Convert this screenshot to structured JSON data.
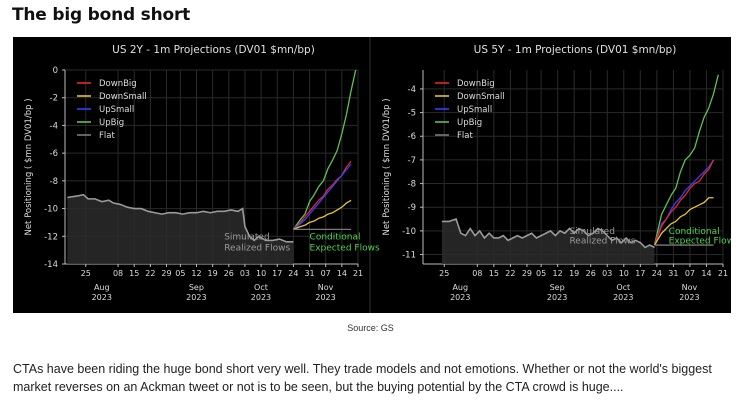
{
  "headline": "The big bond short",
  "source": "Source: GS",
  "caption": "CTAs have been riding the huge bond short very well. They trade models and not emotions. Whether or not the world's biggest market reverses on an Ackman tweet or not is to be seen, but the buying potential by the CTA crowd is huge....",
  "colors": {
    "figure_bg": "#000000",
    "DownBig": "#e8262a",
    "DownSmall": "#e6c42e",
    "UpSmall": "#3040ff",
    "UpBig": "#5ec24e",
    "Flat": "#7a7a7a",
    "realized": "#9a9a9a",
    "conditional_label": "#4fd04f"
  },
  "chart_data": [
    {
      "type": "line",
      "title": "US 2Y - 1m Projections (DV01 $mn/bp)",
      "ylabel": "Net Positioning ( $mn DV01/bp )",
      "xlabel": "",
      "ylim": [
        -14,
        0
      ],
      "yticks": [
        0,
        -2,
        -4,
        -6,
        -8,
        -10,
        -12,
        -14
      ],
      "xlim": [
        -9,
        118
      ],
      "xticks": [
        {
          "x": 0,
          "label": "25",
          "month": "Aug",
          "year": "2023"
        },
        {
          "x": 14,
          "label": "08"
        },
        {
          "x": 21,
          "label": "15"
        },
        {
          "x": 28,
          "label": "22"
        },
        {
          "x": 35,
          "label": "29"
        },
        {
          "x": 41,
          "label": "05",
          "month": "Sep",
          "year": "2023"
        },
        {
          "x": 48,
          "label": "12"
        },
        {
          "x": 55,
          "label": "19"
        },
        {
          "x": 62,
          "label": "26"
        },
        {
          "x": 69,
          "label": "03",
          "month": "Oct",
          "year": "2023"
        },
        {
          "x": 76,
          "label": "10"
        },
        {
          "x": 83,
          "label": "17"
        },
        {
          "x": 90,
          "label": "24"
        },
        {
          "x": 97,
          "label": "31",
          "month": "Nov",
          "year": "2023"
        },
        {
          "x": 104,
          "label": "07"
        },
        {
          "x": 111,
          "label": "14"
        },
        {
          "x": 118,
          "label": "21"
        }
      ],
      "legend": [
        "DownBig",
        "DownSmall",
        "UpSmall",
        "UpBig",
        "Flat"
      ],
      "legend_position": "top-left",
      "annotations": [
        {
          "text": "Simulated",
          "x": 60,
          "y": -12.0,
          "color_key": "realized"
        },
        {
          "text": "Realized Flows",
          "x": 60,
          "y": -12.8,
          "color_key": "realized"
        },
        {
          "text": "Conditional",
          "x": 97,
          "y": -12.0,
          "color_key": "conditional_label"
        },
        {
          "text": "Expected Flows",
          "x": 97,
          "y": -12.8,
          "color_key": "conditional_label"
        }
      ],
      "realized": {
        "name": "Simulated Realized Flows",
        "x": [
          -8,
          -4,
          -1,
          1,
          4,
          7,
          10,
          12,
          15,
          18,
          21,
          24,
          27,
          30,
          33,
          36,
          39,
          42,
          45,
          48,
          51,
          54,
          57,
          60,
          63,
          66,
          68,
          69,
          71,
          73,
          75,
          78,
          81,
          84,
          87,
          90
        ],
        "y": [
          -9.2,
          -9.1,
          -9.0,
          -9.3,
          -9.3,
          -9.5,
          -9.4,
          -9.6,
          -9.7,
          -9.9,
          -10.0,
          -10.0,
          -10.2,
          -10.3,
          -10.4,
          -10.3,
          -10.3,
          -10.4,
          -10.3,
          -10.3,
          -10.2,
          -10.3,
          -10.2,
          -10.2,
          -10.1,
          -10.2,
          -10.0,
          -11.3,
          -12.0,
          -12.3,
          -12.0,
          -12.3,
          -12.3,
          -12.2,
          -12.4,
          -12.4
        ]
      },
      "series": [
        {
          "name": "UpBig",
          "color_key": "UpBig",
          "x": [
            90,
            93,
            95,
            97,
            99,
            101,
            103,
            105,
            107,
            109,
            111,
            113,
            115,
            117
          ],
          "y": [
            -11.5,
            -10.8,
            -10.4,
            -9.5,
            -9.0,
            -8.4,
            -8.0,
            -7.1,
            -6.5,
            -5.8,
            -4.6,
            -3.2,
            -1.5,
            0.0
          ]
        },
        {
          "name": "DownBig",
          "color_key": "DownBig",
          "x": [
            90,
            93,
            95,
            97,
            99,
            101,
            103,
            105,
            107,
            109,
            111,
            113,
            115
          ],
          "y": [
            -11.5,
            -11.0,
            -10.6,
            -10.2,
            -9.8,
            -9.4,
            -9.1,
            -8.6,
            -8.3,
            -7.9,
            -7.6,
            -7.0,
            -6.6
          ]
        },
        {
          "name": "UpSmall",
          "color_key": "UpSmall",
          "x": [
            90,
            93,
            95,
            97,
            99,
            101,
            103,
            105,
            107,
            109,
            111,
            113,
            115
          ],
          "y": [
            -11.5,
            -11.1,
            -10.8,
            -10.4,
            -10.0,
            -9.6,
            -9.2,
            -8.8,
            -8.4,
            -8.0,
            -7.6,
            -7.2,
            -6.8
          ]
        },
        {
          "name": "DownSmall",
          "color_key": "DownSmall",
          "x": [
            90,
            93,
            95,
            97,
            99,
            101,
            103,
            105,
            107,
            109,
            111,
            113,
            115
          ],
          "y": [
            -11.5,
            -11.3,
            -11.2,
            -11.0,
            -10.9,
            -10.7,
            -10.6,
            -10.4,
            -10.3,
            -10.1,
            -9.9,
            -9.6,
            -9.4
          ]
        },
        {
          "name": "Flat",
          "color_key": "Flat",
          "x": [
            90,
            95,
            100,
            105,
            110,
            115
          ],
          "y": [
            -11.5,
            -11.5,
            -11.5,
            -11.5,
            -11.5,
            -11.5
          ]
        }
      ]
    },
    {
      "type": "line",
      "title": "US 5Y - 1m Projections (DV01 $mn/bp)",
      "ylabel": "Net Positioning ( $mn DV01/bp )",
      "xlabel": "",
      "ylim": [
        -11.4,
        -3.2
      ],
      "yticks": [
        -4,
        -5,
        -6,
        -7,
        -8,
        -9,
        -10,
        -11
      ],
      "xlim": [
        -9,
        118
      ],
      "xticks": [
        {
          "x": 0,
          "label": "25",
          "month": "Aug",
          "year": "2023"
        },
        {
          "x": 14,
          "label": "08"
        },
        {
          "x": 21,
          "label": "15"
        },
        {
          "x": 28,
          "label": "22"
        },
        {
          "x": 35,
          "label": "29"
        },
        {
          "x": 41,
          "label": "05",
          "month": "Sep",
          "year": "2023"
        },
        {
          "x": 48,
          "label": "12"
        },
        {
          "x": 55,
          "label": "19"
        },
        {
          "x": 62,
          "label": "26"
        },
        {
          "x": 69,
          "label": "03",
          "month": "Oct",
          "year": "2023"
        },
        {
          "x": 76,
          "label": "10"
        },
        {
          "x": 83,
          "label": "17"
        },
        {
          "x": 90,
          "label": "24"
        },
        {
          "x": 97,
          "label": "31",
          "month": "Nov",
          "year": "2023"
        },
        {
          "x": 104,
          "label": "07"
        },
        {
          "x": 111,
          "label": "14"
        },
        {
          "x": 118,
          "label": "21"
        }
      ],
      "legend": [
        "DownBig",
        "DownSmall",
        "UpSmall",
        "UpBig",
        "Flat"
      ],
      "legend_position": "top-left",
      "annotations": [
        {
          "text": "Simulated",
          "x": 53,
          "y": -10.0,
          "color_key": "realized"
        },
        {
          "text": "Realized Flows",
          "x": 53,
          "y": -10.4,
          "color_key": "realized"
        },
        {
          "text": "Conditional",
          "x": 95,
          "y": -10.0,
          "color_key": "conditional_label"
        },
        {
          "text": "Expected Flows",
          "x": 95,
          "y": -10.4,
          "color_key": "conditional_label"
        }
      ],
      "realized": {
        "name": "Simulated Realized Flows",
        "x": [
          -1,
          2,
          5,
          7,
          9,
          11,
          13,
          15,
          17,
          19,
          21,
          23,
          25,
          27,
          29,
          31,
          33,
          35,
          37,
          39,
          41,
          43,
          45,
          47,
          49,
          51,
          53,
          55,
          57,
          59,
          61,
          63,
          65,
          67,
          69,
          71,
          73,
          75,
          77,
          79,
          81,
          83,
          85,
          87,
          89
        ],
        "y": [
          -9.6,
          -9.6,
          -9.5,
          -10.1,
          -10.2,
          -9.9,
          -10.2,
          -10.0,
          -10.3,
          -10.1,
          -10.3,
          -10.3,
          -10.2,
          -10.4,
          -10.3,
          -10.2,
          -10.3,
          -10.2,
          -10.1,
          -10.3,
          -10.2,
          -10.1,
          -10.0,
          -10.2,
          -10.0,
          -10.1,
          -9.9,
          -10.1,
          -9.9,
          -10.0,
          -10.2,
          -10.1,
          -9.9,
          -10.0,
          -10.2,
          -10.4,
          -10.3,
          -10.5,
          -10.3,
          -10.5,
          -10.4,
          -10.5,
          -10.7,
          -10.6,
          -10.7
        ]
      },
      "series": [
        {
          "name": "UpBig",
          "color_key": "UpBig",
          "x": [
            89,
            92,
            94,
            96,
            98,
            100,
            102,
            104,
            106,
            108,
            110,
            112,
            114,
            116
          ],
          "y": [
            -10.6,
            -9.3,
            -8.9,
            -8.5,
            -8.2,
            -7.5,
            -7.0,
            -6.8,
            -6.5,
            -5.8,
            -5.2,
            -4.8,
            -4.2,
            -3.4
          ]
        },
        {
          "name": "UpSmall",
          "color_key": "UpSmall",
          "x": [
            89,
            92,
            94,
            96,
            98,
            100,
            102,
            104,
            106,
            108,
            110,
            112,
            114
          ],
          "y": [
            -10.6,
            -9.7,
            -9.5,
            -9.1,
            -8.8,
            -8.6,
            -8.3,
            -8.1,
            -7.9,
            -7.7,
            -7.5,
            -7.3,
            -7.0
          ]
        },
        {
          "name": "DownBig",
          "color_key": "DownBig",
          "x": [
            89,
            92,
            94,
            96,
            98,
            100,
            102,
            104,
            106,
            108,
            110,
            112,
            114
          ],
          "y": [
            -10.6,
            -9.8,
            -9.5,
            -9.2,
            -9.0,
            -8.7,
            -8.5,
            -8.2,
            -8.0,
            -7.9,
            -7.6,
            -7.4,
            -7.0
          ]
        },
        {
          "name": "DownSmall",
          "color_key": "DownSmall",
          "x": [
            89,
            92,
            94,
            96,
            98,
            100,
            102,
            104,
            106,
            108,
            110,
            112,
            114
          ],
          "y": [
            -10.6,
            -10.1,
            -9.9,
            -9.7,
            -9.6,
            -9.4,
            -9.3,
            -9.1,
            -9.0,
            -8.9,
            -8.8,
            -8.6,
            -8.6
          ]
        },
        {
          "name": "Flat",
          "color_key": "Flat",
          "x": [
            89,
            95,
            100,
            105,
            110,
            114
          ],
          "y": [
            -10.6,
            -10.6,
            -10.6,
            -10.6,
            -10.6,
            -10.6
          ]
        }
      ]
    }
  ]
}
